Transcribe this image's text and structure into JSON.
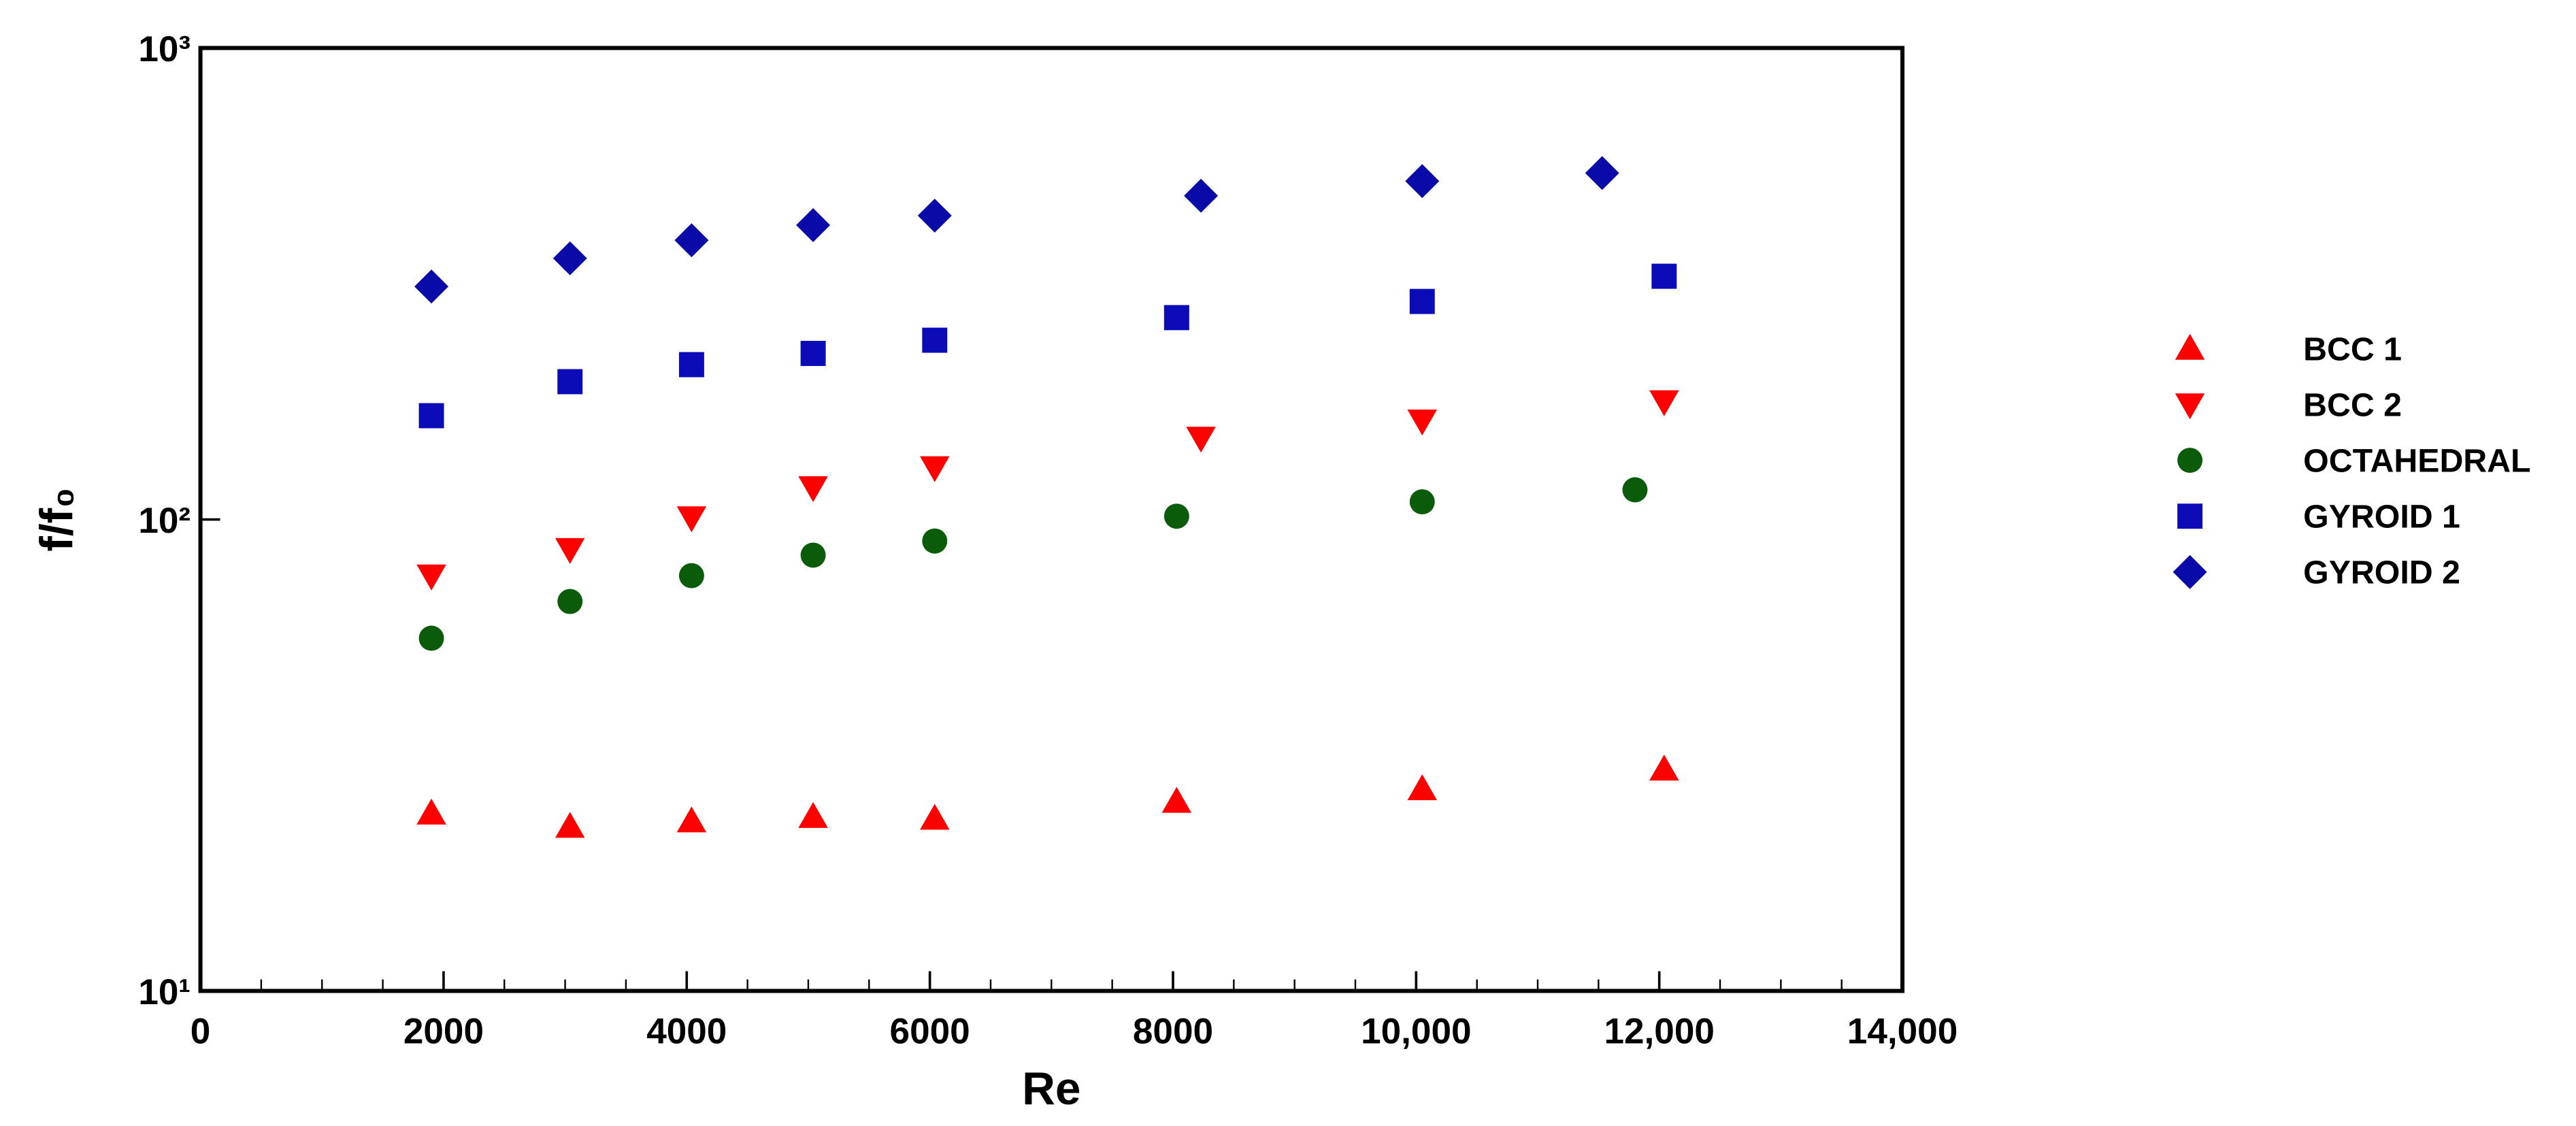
{
  "chart_data": {
    "type": "scatter",
    "x_label": "Re",
    "y_label": "f/f₀",
    "xlim": [
      0,
      14000
    ],
    "xticks": [
      0,
      2000,
      4000,
      6000,
      8000,
      {
        "value": 10000,
        "label": "10,000"
      },
      {
        "value": 12000,
        "label": "12,000"
      },
      {
        "value": 14000,
        "label": "14,000"
      }
    ],
    "ylim": [
      10,
      1000
    ],
    "y_log": true,
    "yticks": [
      {
        "value": 10,
        "label": "10¹"
      },
      {
        "value": 100,
        "label": "10²"
      },
      {
        "value": 1000,
        "label": "10³"
      }
    ],
    "legend": "right",
    "series": [
      {
        "name": "BCC 1",
        "color": "#ff0000",
        "marker": "triangle-up",
        "x": [
          1900,
          3040,
          4040,
          5040,
          6040,
          8030,
          10050,
          12040
        ],
        "values": [
          23.8,
          22.3,
          22.9,
          23.4,
          23.2,
          25.2,
          26.8,
          29.5
        ]
      },
      {
        "name": "BCC 2",
        "color": "#ff0000",
        "marker": "triangle-down",
        "x": [
          1900,
          3040,
          4040,
          5040,
          6040,
          8230,
          10050,
          12040
        ],
        "values": [
          76,
          86.5,
          101,
          117,
          129,
          149,
          162,
          178
        ]
      },
      {
        "name": "OCTAHEDRAL",
        "color": "#0a5c0a",
        "marker": "circle",
        "x": [
          1900,
          3040,
          4040,
          5040,
          6040,
          8030,
          10050,
          11800
        ],
        "values": [
          56,
          67,
          76,
          84,
          90,
          101.6,
          109,
          115.6
        ]
      },
      {
        "name": "GYROID 1",
        "color": "#0b0bb8",
        "marker": "square",
        "x": [
          1900,
          3040,
          4040,
          5040,
          6040,
          8030,
          10050,
          12040
        ],
        "values": [
          166,
          196,
          213,
          225,
          240,
          268,
          290,
          328
        ]
      },
      {
        "name": "GYROID 2",
        "color": "#0a0aa8",
        "marker": "diamond",
        "x": [
          1900,
          3040,
          4040,
          5040,
          6040,
          8230,
          10050,
          11530
        ],
        "values": [
          312,
          358,
          391,
          421,
          441,
          486,
          522,
          543
        ]
      }
    ]
  }
}
